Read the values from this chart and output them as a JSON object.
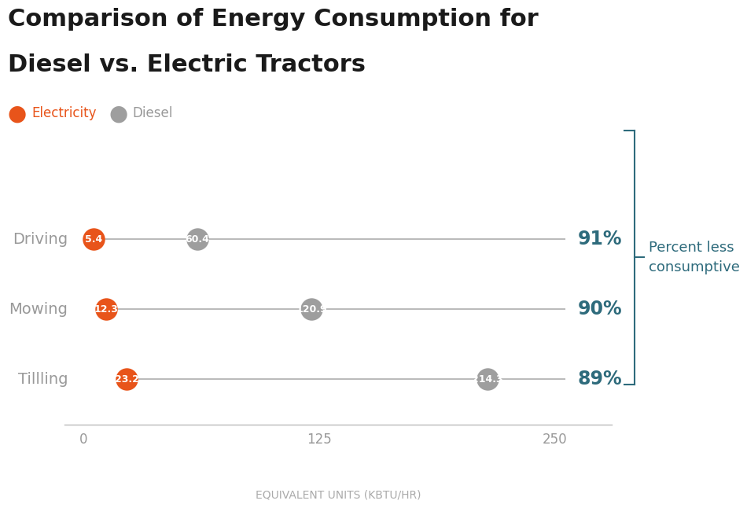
{
  "title_line1": "Comparison of Energy Consumption for",
  "title_line2": "Diesel vs. Electric Tractors",
  "categories": [
    "Driving",
    "Mowing",
    "Tillling"
  ],
  "electric_values": [
    5.4,
    12.3,
    23.2
  ],
  "diesel_values": [
    60.4,
    120.9,
    214.3
  ],
  "percent_labels": [
    "91%",
    "90%",
    "89%"
  ],
  "electric_color": "#E8541A",
  "diesel_color": "#9E9E9E",
  "line_color": "#BBBBBB",
  "percent_color": "#2E6B7C",
  "xlabel": "EQUIVALENT UNITS (KBTU/HR)",
  "xlim": [
    -10,
    280
  ],
  "xticks": [
    0,
    125,
    250
  ],
  "legend_electric_label": "Electricity",
  "legend_diesel_label": "Diesel",
  "marker_size": 420,
  "background_color": "#FFFFFF",
  "title_fontsize": 22,
  "label_fontsize": 14,
  "tick_fontsize": 12,
  "percent_fontsize": 17,
  "annotation_text": "Percent less\nconsumptive",
  "annotation_color": "#2E6B7C",
  "category_color": "#999999"
}
